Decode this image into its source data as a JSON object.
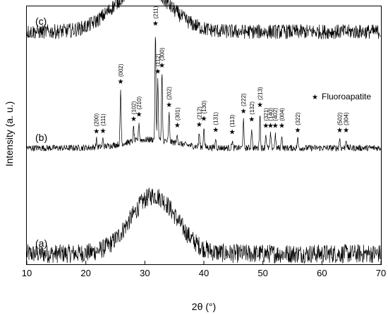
{
  "chart_data": {
    "type": "line",
    "xlabel": "2θ (°)",
    "ylabel": "Intensity (a. u.)",
    "xlim": [
      10,
      70
    ],
    "xticks": [
      "10",
      "20",
      "30",
      "40",
      "50",
      "60",
      "70"
    ],
    "series": [
      {
        "name": "(a)",
        "baseline": 0.0,
        "hump_center": 31.5,
        "hump_height": 0.55,
        "hump_width": 5.5,
        "noise": 0.09,
        "peaks": []
      },
      {
        "name": "(b)",
        "baseline": 1.0,
        "hump_center": 31.0,
        "hump_height": 0.08,
        "hump_width": 6.0,
        "noise": 0.03,
        "peaks": [
          {
            "pos": 21.8,
            "label": "(200)",
            "rel": 0.12
          },
          {
            "pos": 22.9,
            "label": "(111)",
            "rel": 0.12
          },
          {
            "pos": 25.9,
            "label": "(002)",
            "rel": 0.85
          },
          {
            "pos": 28.1,
            "label": "(102)",
            "rel": 0.22
          },
          {
            "pos": 29.0,
            "label": "(210)",
            "rel": 0.28
          },
          {
            "pos": 31.8,
            "label": "(211)",
            "rel": 1.7
          },
          {
            "pos": 32.2,
            "label": "(112)",
            "rel": 0.95
          },
          {
            "pos": 32.9,
            "label": "(300)",
            "rel": 1.05
          },
          {
            "pos": 34.1,
            "label": "(202)",
            "rel": 0.45
          },
          {
            "pos": 35.5,
            "label": "(301)",
            "rel": 0.15
          },
          {
            "pos": 39.2,
            "label": "(212)",
            "rel": 0.22
          },
          {
            "pos": 40.0,
            "label": "(130)",
            "rel": 0.32
          },
          {
            "pos": 42.0,
            "label": "(131)",
            "rel": 0.15
          },
          {
            "pos": 44.8,
            "label": "(113)",
            "rel": 0.12
          },
          {
            "pos": 46.7,
            "label": "(222)",
            "rel": 0.45
          },
          {
            "pos": 48.1,
            "label": "(132)",
            "rel": 0.32
          },
          {
            "pos": 49.5,
            "label": "(213)",
            "rel": 0.55
          },
          {
            "pos": 50.5,
            "label": "(321)",
            "rel": 0.22
          },
          {
            "pos": 51.3,
            "label": "(140)",
            "rel": 0.22
          },
          {
            "pos": 52.1,
            "label": "(402)",
            "rel": 0.22
          },
          {
            "pos": 53.2,
            "label": "(004)",
            "rel": 0.22
          },
          {
            "pos": 55.9,
            "label": "(322)",
            "rel": 0.15
          },
          {
            "pos": 63.0,
            "label": "(502)",
            "rel": 0.15
          },
          {
            "pos": 64.1,
            "label": "(304)",
            "rel": 0.15
          }
        ]
      },
      {
        "name": "(c)",
        "baseline": 2.1,
        "hump_center": 29.5,
        "hump_height": 0.42,
        "hump_width": 6.5,
        "noise": 0.07,
        "peaks": []
      }
    ],
    "legend": {
      "marker": "★",
      "label": "Fluoroapatite",
      "position": "top-right"
    },
    "grid": false
  }
}
